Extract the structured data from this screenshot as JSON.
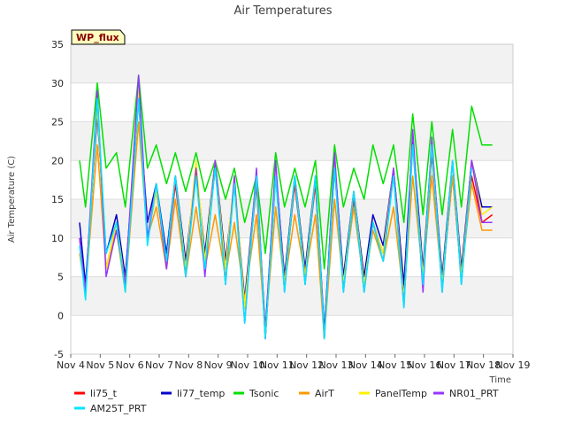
{
  "chart_data": {
    "type": "line",
    "title": "Air Temperatures",
    "xlabel": "Time",
    "ylabel": "Air Temperature (C)",
    "badge": "WP_flux",
    "ylim": [
      -5,
      35
    ],
    "yticks": [
      -5,
      0,
      5,
      10,
      15,
      20,
      25,
      30,
      35
    ],
    "xlim": [
      4,
      19
    ],
    "xticks": [
      {
        "v": 4,
        "label": "Nov 4"
      },
      {
        "v": 5,
        "label": "Nov 5"
      },
      {
        "v": 6,
        "label": "Nov 6"
      },
      {
        "v": 7,
        "label": "Nov 7"
      },
      {
        "v": 8,
        "label": "Nov 8"
      },
      {
        "v": 9,
        "label": "Nov 9"
      },
      {
        "v": 10,
        "label": "Nov 10"
      },
      {
        "v": 11,
        "label": "Nov 11"
      },
      {
        "v": 12,
        "label": "Nov 12"
      },
      {
        "v": 13,
        "label": "Nov 13"
      },
      {
        "v": 14,
        "label": "Nov 14"
      },
      {
        "v": 15,
        "label": "Nov 15"
      },
      {
        "v": 16,
        "label": "Nov 16"
      },
      {
        "v": 17,
        "label": "Nov 17"
      },
      {
        "v": 18,
        "label": "Nov 18"
      },
      {
        "v": 19,
        "label": "Nov 19"
      }
    ],
    "x_units": "day of November",
    "grid": true,
    "legend_position": "bottom",
    "series": [
      {
        "name": "li75_t",
        "color": "#ff0000",
        "x": [
          4.3,
          4.5,
          4.9,
          5.2,
          5.55,
          5.85,
          6.3,
          6.6,
          6.9,
          7.25,
          7.55,
          7.9,
          8.25,
          8.55,
          8.9,
          9.25,
          9.55,
          9.9,
          10.3,
          10.6,
          10.95,
          11.25,
          11.6,
          11.95,
          12.3,
          12.6,
          12.95,
          13.25,
          13.6,
          13.95,
          14.25,
          14.6,
          14.95,
          15.3,
          15.6,
          15.95,
          16.25,
          16.6,
          16.95,
          17.25,
          17.6,
          17.95,
          18.3
        ],
        "y": [
          10,
          3,
          27,
          6,
          12,
          4,
          28,
          10,
          16,
          7,
          17,
          6,
          19,
          7,
          19,
          6,
          17,
          1,
          17,
          -3,
          18,
          4,
          17,
          5,
          17,
          -3,
          19,
          4,
          15,
          4,
          12,
          8,
          18,
          3,
          22,
          5,
          21,
          4,
          18,
          5,
          18,
          12,
          13
        ]
      },
      {
        "name": "li77_temp",
        "color": "#0000cc",
        "x": [
          4.3,
          4.5,
          4.9,
          5.2,
          5.55,
          5.85,
          6.3,
          6.6,
          6.9,
          7.25,
          7.55,
          7.9,
          8.25,
          8.55,
          8.9,
          9.25,
          9.55,
          9.9,
          10.3,
          10.6,
          10.95,
          11.25,
          11.6,
          11.95,
          12.3,
          12.6,
          12.95,
          13.25,
          13.6,
          13.95,
          14.25,
          14.6,
          14.95,
          15.3,
          15.6,
          15.95,
          16.25,
          16.6,
          16.95,
          17.25,
          17.6,
          17.95,
          18.3
        ],
        "y": [
          12,
          4,
          26,
          8,
          13,
          5,
          28,
          12,
          17,
          8,
          18,
          7,
          19,
          8,
          20,
          7,
          17,
          2,
          18,
          -2,
          19,
          5,
          18,
          6,
          18,
          -2,
          20,
          5,
          16,
          5,
          13,
          9,
          19,
          4,
          23,
          6,
          22,
          5,
          20,
          6,
          20,
          14,
          14
        ]
      },
      {
        "name": "Tsonic",
        "color": "#00e000",
        "x": [
          4.3,
          4.5,
          4.9,
          5.2,
          5.55,
          5.85,
          6.3,
          6.6,
          6.9,
          7.25,
          7.55,
          7.9,
          8.25,
          8.55,
          8.9,
          9.25,
          9.55,
          9.9,
          10.3,
          10.6,
          10.95,
          11.25,
          11.6,
          11.95,
          12.3,
          12.6,
          12.95,
          13.25,
          13.6,
          13.95,
          14.25,
          14.6,
          14.95,
          15.3,
          15.6,
          15.95,
          16.25,
          16.6,
          16.95,
          17.25,
          17.6,
          17.95,
          18.3
        ],
        "y": [
          20,
          14,
          30,
          19,
          21,
          14,
          31,
          19,
          22,
          17,
          21,
          16,
          21,
          16,
          20,
          15,
          19,
          12,
          18,
          8,
          21,
          14,
          19,
          14,
          20,
          6,
          22,
          14,
          19,
          15,
          22,
          17,
          22,
          12,
          26,
          13,
          25,
          13,
          24,
          14,
          27,
          22,
          22
        ]
      },
      {
        "name": "AirT",
        "color": "#ff9900",
        "x": [
          4.3,
          4.5,
          4.9,
          5.2,
          5.55,
          5.85,
          6.3,
          6.6,
          6.9,
          7.25,
          7.55,
          7.9,
          8.25,
          8.55,
          8.9,
          9.25,
          9.55,
          9.9,
          10.3,
          10.6,
          10.95,
          11.25,
          11.6,
          11.95,
          12.3,
          12.6,
          12.95,
          13.25,
          13.6,
          13.95,
          14.25,
          14.6,
          14.95,
          15.3,
          15.6,
          15.95,
          16.25,
          16.6,
          16.95,
          17.25,
          17.6,
          17.95,
          18.3
        ],
        "y": [
          8,
          3,
          22,
          6,
          11,
          3,
          25,
          10,
          14,
          6,
          15,
          5,
          14,
          6,
          13,
          5,
          12,
          2,
          13,
          -2,
          14,
          4,
          13,
          5,
          13,
          -3,
          15,
          4,
          14,
          4,
          11,
          7,
          14,
          2,
          18,
          5,
          18,
          4,
          18,
          5,
          17,
          11,
          11
        ]
      },
      {
        "name": "PanelTemp",
        "color": "#ffee00",
        "x": [
          4.3,
          4.5,
          4.9,
          5.2,
          5.55,
          5.85,
          6.3,
          6.6,
          6.9,
          7.25,
          7.55,
          7.9,
          8.25,
          8.55,
          8.9,
          9.25,
          9.55,
          9.9,
          10.3,
          10.6,
          10.95,
          11.25,
          11.6,
          11.95,
          12.3,
          12.6,
          12.95,
          13.25,
          13.6,
          13.95,
          14.25,
          14.6,
          14.95,
          15.3,
          15.6,
          15.95,
          16.25,
          16.6,
          16.95,
          17.25,
          17.6,
          17.95,
          18.3
        ],
        "y": [
          9,
          3,
          27,
          6,
          12,
          4,
          29,
          10,
          16,
          7,
          18,
          6,
          20,
          7,
          20,
          6,
          18,
          1,
          18,
          -3,
          19,
          4,
          18,
          5,
          18,
          -3,
          20,
          4,
          16,
          4,
          12,
          8,
          19,
          2,
          22,
          5,
          22,
          4,
          20,
          5,
          20,
          13,
          14
        ]
      },
      {
        "name": "NR01_PRT",
        "color": "#9933ff",
        "x": [
          4.3,
          4.5,
          4.9,
          5.2,
          5.55,
          5.85,
          6.3,
          6.6,
          6.9,
          7.25,
          7.55,
          7.9,
          8.25,
          8.55,
          8.9,
          9.25,
          9.55,
          9.9,
          10.3,
          10.6,
          10.95,
          11.25,
          11.6,
          11.95,
          12.3,
          12.6,
          12.95,
          13.25,
          13.6,
          13.95,
          14.25,
          14.6,
          14.95,
          15.3,
          15.6,
          15.95,
          16.25,
          16.6,
          16.95,
          17.25,
          17.6,
          17.95,
          18.3
        ],
        "y": [
          10,
          3,
          29,
          5,
          11,
          4,
          31,
          10,
          17,
          6,
          18,
          5,
          19,
          5,
          20,
          4,
          18,
          -1,
          19,
          -3,
          20,
          3,
          18,
          4,
          18,
          -3,
          21,
          3,
          16,
          3,
          12,
          7,
          19,
          1,
          24,
          3,
          23,
          3,
          20,
          4,
          20,
          12,
          12
        ]
      },
      {
        "name": "AM25T_PRT",
        "color": "#00e5ff",
        "x": [
          4.3,
          4.5,
          4.9,
          5.2,
          5.55,
          5.85,
          6.3,
          6.6,
          6.9,
          7.25,
          7.55,
          7.9,
          8.25,
          8.55,
          8.9,
          9.25,
          9.55,
          9.9,
          10.3,
          10.6,
          10.95,
          11.25,
          11.6,
          11.95,
          12.3,
          12.6,
          12.95,
          13.25,
          13.6,
          13.95,
          14.25,
          14.6,
          14.95,
          15.3,
          15.6,
          15.95,
          16.25,
          16.6,
          16.95,
          17.25,
          17.6,
          17.95,
          18.3
        ],
        "y": [
          9,
          2,
          28,
          8,
          12,
          3,
          28,
          9,
          17,
          7,
          18,
          5,
          18,
          6,
          19,
          4,
          17,
          -1,
          18,
          -3,
          18,
          3,
          18,
          4,
          18,
          -3,
          19,
          3,
          16,
          3,
          12,
          7,
          18,
          1,
          22,
          4,
          22,
          3,
          20,
          4,
          19,
          null,
          null
        ]
      }
    ]
  }
}
